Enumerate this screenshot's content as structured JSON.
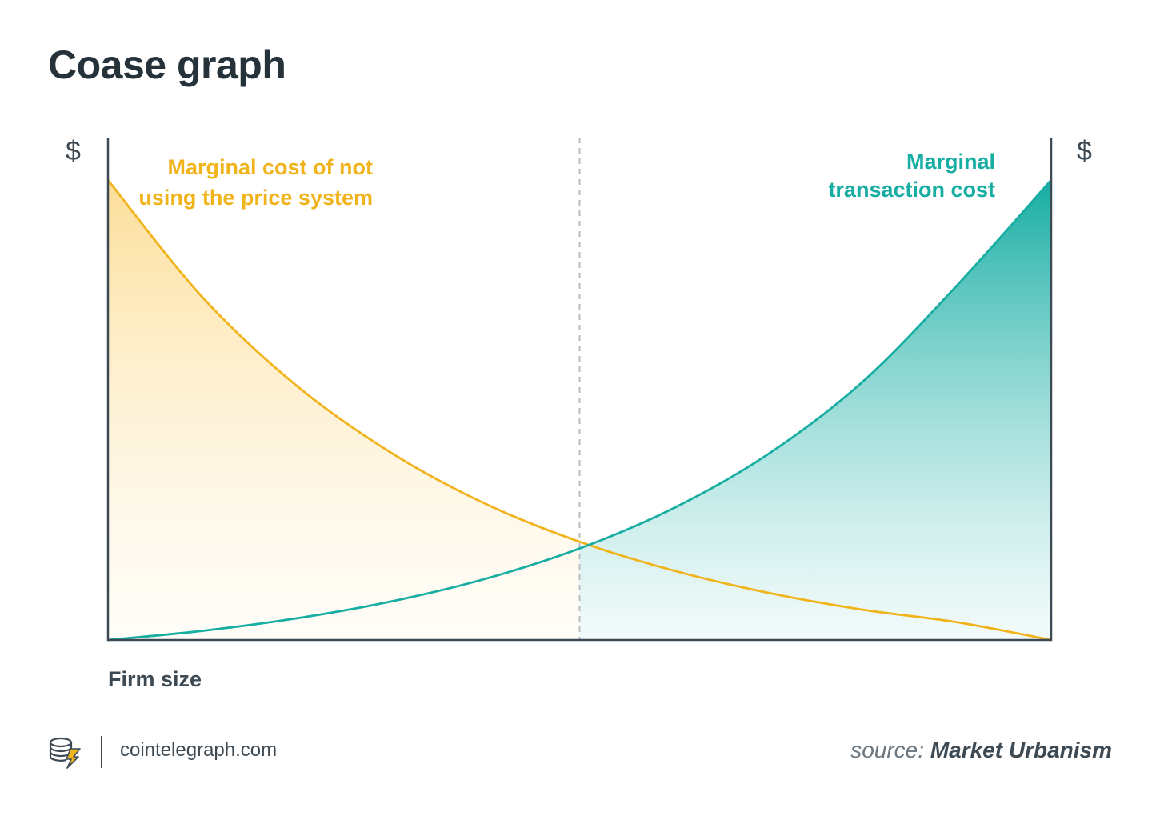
{
  "title": "Coase graph",
  "chart_data": {
    "type": "area",
    "xlabel": "Firm size",
    "ylabel_left": "$",
    "ylabel_right": "$",
    "x": [
      0,
      0.1,
      0.2,
      0.3,
      0.4,
      0.5,
      0.6,
      0.7,
      0.8,
      0.9,
      1.0
    ],
    "xlim": [
      0,
      1
    ],
    "ylim": [
      0,
      1
    ],
    "series": [
      {
        "name": "Marginal cost of not using the price system",
        "color": "#f0b31a",
        "values": [
          0.955,
          0.712,
          0.528,
          0.389,
          0.283,
          0.204,
          0.144,
          0.098,
          0.063,
          0.037,
          0.0
        ]
      },
      {
        "name": "Marginal transaction cost",
        "color": "#16ada3",
        "values": [
          0.0,
          0.019,
          0.045,
          0.08,
          0.127,
          0.19,
          0.274,
          0.386,
          0.536,
          0.736,
          0.955
        ]
      }
    ],
    "equilibrium_x": 0.5,
    "grid": false,
    "legend": "none"
  },
  "footer": {
    "site": "cointelegraph.com",
    "source_prefix": "source:",
    "source_name": "Market Urbanism"
  },
  "icons": {
    "logo": "cointelegraph-coin-logo-icon"
  }
}
